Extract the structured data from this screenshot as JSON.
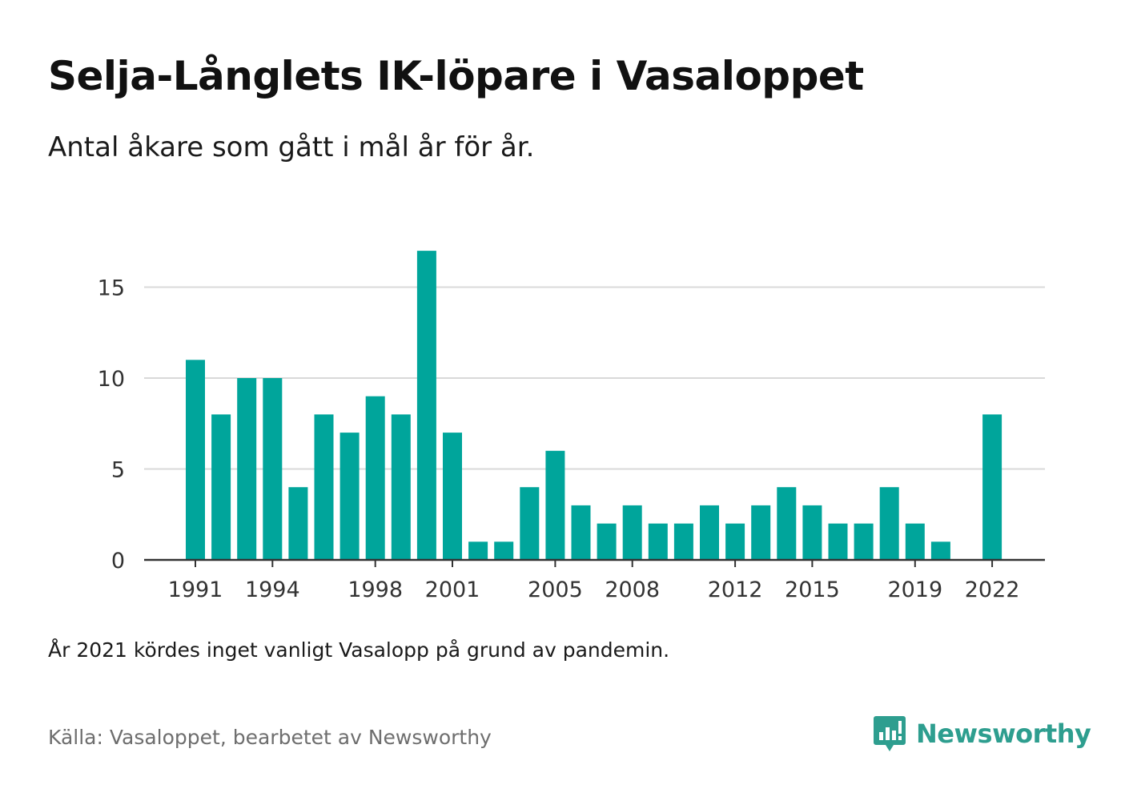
{
  "header": {
    "title": "Selja-Långlets IK-löpare i Vasaloppet",
    "subtitle": "Antal åkare som gått i mål år för år."
  },
  "footer": {
    "note": "År 2021 kördes inget vanligt Vasalopp på grund av pandemin.",
    "source": "Källa: Vasaloppet, bearbetet av Newsworthy",
    "brand": "Newsworthy",
    "brand_icon": "bar-chart-speech-bubble-icon"
  },
  "colors": {
    "bar": "#00a59b",
    "grid": "#d9d9d9",
    "axis": "#333333",
    "brand": "#2e9e8f"
  },
  "chart_data": {
    "type": "bar",
    "title": "Selja-Långlets IK-löpare i Vasaloppet",
    "subtitle": "Antal åkare som gått i mål år för år.",
    "xlabel": "",
    "ylabel": "",
    "grid": true,
    "ylim": [
      0,
      17
    ],
    "yticks": [
      0,
      5,
      10,
      15
    ],
    "xticks": [
      1991,
      1994,
      1998,
      2001,
      2005,
      2008,
      2012,
      2015,
      2019,
      2022
    ],
    "categories": [
      1991,
      1992,
      1993,
      1994,
      1995,
      1996,
      1997,
      1998,
      1999,
      2000,
      2001,
      2002,
      2003,
      2004,
      2005,
      2006,
      2007,
      2008,
      2009,
      2010,
      2011,
      2012,
      2013,
      2014,
      2015,
      2016,
      2017,
      2018,
      2019,
      2020,
      2021,
      2022
    ],
    "values": [
      11,
      8,
      10,
      10,
      4,
      8,
      7,
      9,
      8,
      17,
      7,
      1,
      1,
      4,
      6,
      3,
      2,
      3,
      2,
      2,
      3,
      2,
      3,
      4,
      3,
      2,
      2,
      4,
      2,
      1,
      0,
      8
    ]
  }
}
